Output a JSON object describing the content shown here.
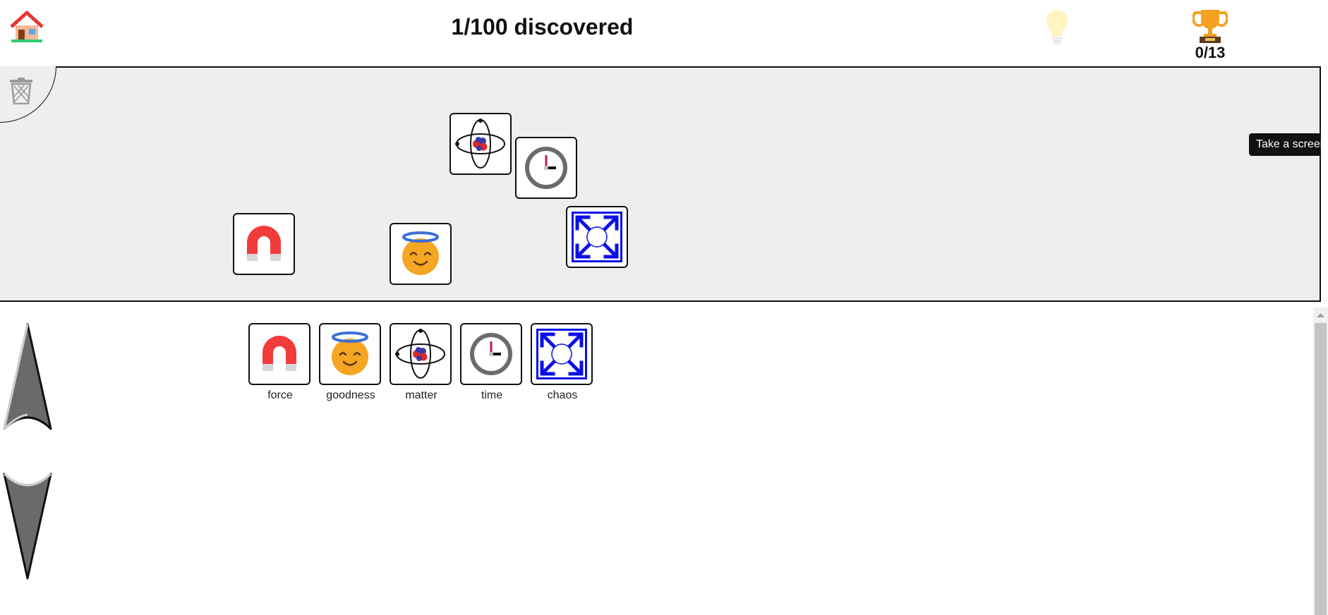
{
  "header": {
    "discovered_text": "1/100 discovered",
    "trophy_count": "0/13"
  },
  "tooltip": {
    "text": "Take a screens"
  },
  "elements": {
    "force": {
      "label": "force",
      "icon": "magnet-icon"
    },
    "goodness": {
      "label": "goodness",
      "icon": "smiling-face-with-halo-icon"
    },
    "matter": {
      "label": "matter",
      "icon": "atom-icon"
    },
    "time": {
      "label": "time",
      "icon": "clock-icon"
    },
    "chaos": {
      "label": "chaos",
      "icon": "expand-arrows-icon"
    }
  },
  "colors": {
    "workspace_bg": "#eeeeee",
    "magnet_red": "#f23b3b",
    "halo_blue": "#3d6fd6",
    "chaos_blue": "#0a10e6",
    "trophy_gold": "#f4a020"
  }
}
